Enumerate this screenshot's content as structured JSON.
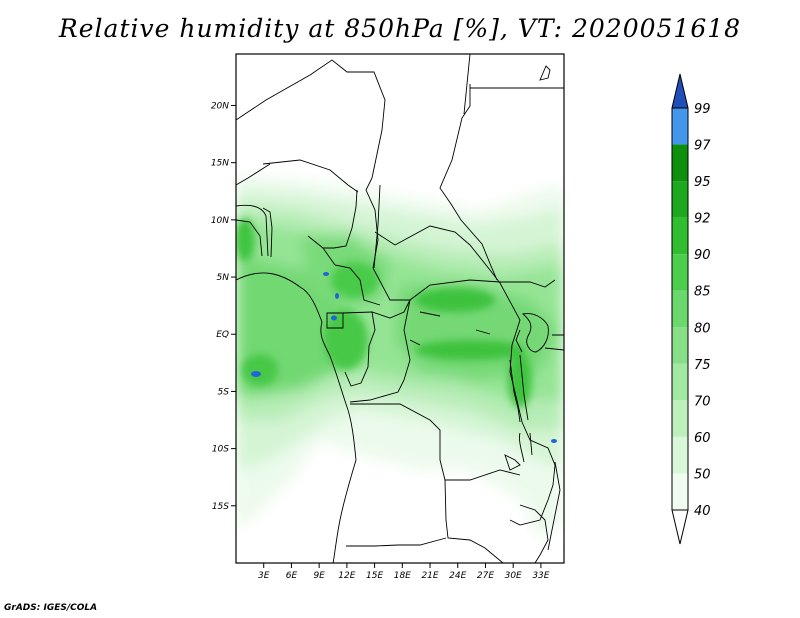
{
  "title": "Relative humidity at 850hPa [%], VT: 2020051618",
  "credit": "GrADS: IGES/COLA",
  "map": {
    "lon_range": [
      0,
      35.5
    ],
    "lat_range": [
      -20,
      24.5
    ],
    "lon_ticks": [
      {
        "value": 3,
        "label": "3E"
      },
      {
        "value": 6,
        "label": "6E"
      },
      {
        "value": 9,
        "label": "9E"
      },
      {
        "value": 12,
        "label": "12E"
      },
      {
        "value": 15,
        "label": "15E"
      },
      {
        "value": 18,
        "label": "18E"
      },
      {
        "value": 21,
        "label": "21E"
      },
      {
        "value": 24,
        "label": "24E"
      },
      {
        "value": 27,
        "label": "27E"
      },
      {
        "value": 30,
        "label": "30E"
      },
      {
        "value": 33,
        "label": "33E"
      }
    ],
    "lat_ticks": [
      {
        "value": 20,
        "label": "20N"
      },
      {
        "value": 15,
        "label": "15N"
      },
      {
        "value": 10,
        "label": "10N"
      },
      {
        "value": 5,
        "label": "5N"
      },
      {
        "value": 0,
        "label": "EQ"
      },
      {
        "value": -5,
        "label": "5S"
      },
      {
        "value": -10,
        "label": "10S"
      },
      {
        "value": -15,
        "label": "15S"
      }
    ]
  },
  "colorbar": {
    "levels": [
      "40",
      "50",
      "60",
      "70",
      "75",
      "80",
      "85",
      "90",
      "92",
      "95",
      "97",
      "99"
    ],
    "colors": [
      "#f0fcf0",
      "#d8f6d8",
      "#bdefbd",
      "#a2e8a2",
      "#87e087",
      "#6ad86a",
      "#4cce4c",
      "#30be30",
      "#1ea81e",
      "#0e900e",
      "#4496ec",
      "#2266d6",
      "#1f4fb8"
    ],
    "below_color": "#ffffff"
  }
}
